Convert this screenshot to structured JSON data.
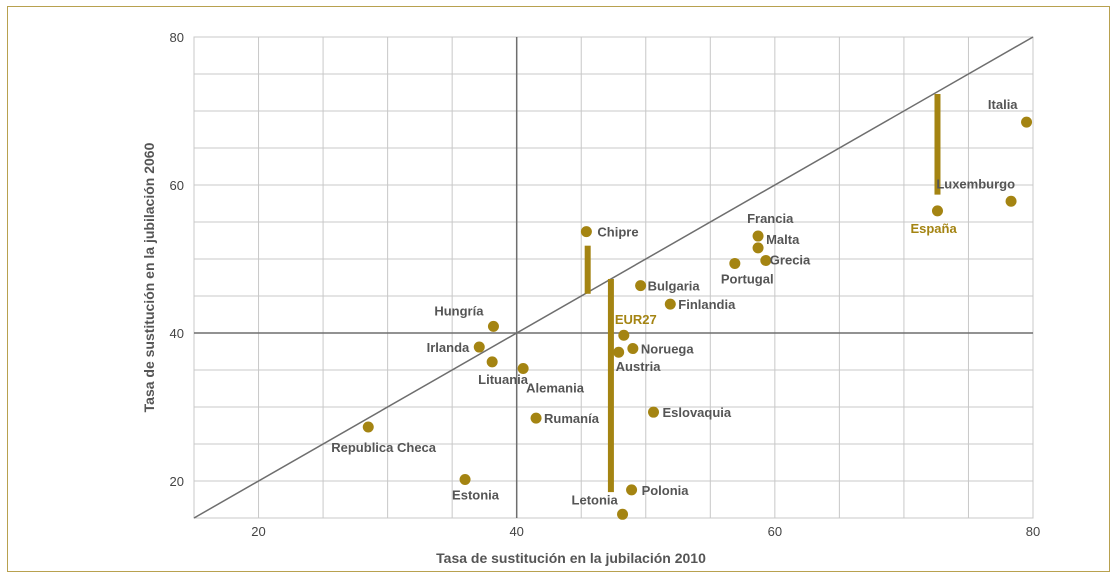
{
  "chart_data": {
    "type": "scatter",
    "xlabel": "Tasa de sustitución en la jubilación 2010",
    "ylabel": "Tasa de sustitución en la jubilación 2060",
    "xlim": [
      15,
      80
    ],
    "ylim": [
      15,
      80
    ],
    "xticks": [
      20,
      40,
      60,
      80
    ],
    "yticks": [
      20,
      40,
      60,
      80
    ],
    "reference_lines": {
      "diagonal": "y = x",
      "vertical_x": 40,
      "horizontal_y": 40
    },
    "grid": true,
    "colors": {
      "marker": "#a48412",
      "highlight_text": "#a48412",
      "label_text": "#555555",
      "grid": "#c8c8c8",
      "reference": "#6e6e6e"
    },
    "points": [
      {
        "name": "Italia",
        "x": 79.5,
        "y": 68.5
      },
      {
        "name": "Luxemburgo",
        "x": 78.3,
        "y": 57.8
      },
      {
        "name": "España",
        "x": 72.6,
        "y": 56.5,
        "highlight": true
      },
      {
        "name": "Francia",
        "x": 58.7,
        "y": 53.1
      },
      {
        "name": "Malta",
        "x": 58.7,
        "y": 51.5
      },
      {
        "name": "Grecia",
        "x": 59.3,
        "y": 49.8
      },
      {
        "name": "Portugal",
        "x": 56.9,
        "y": 49.4
      },
      {
        "name": "Chipre",
        "x": 45.4,
        "y": 53.7
      },
      {
        "name": "Bulgaria",
        "x": 49.6,
        "y": 46.4
      },
      {
        "name": "Finlandia",
        "x": 51.9,
        "y": 43.9
      },
      {
        "name": "EUR27",
        "x": 48.3,
        "y": 39.7,
        "highlight": true
      },
      {
        "name": "Noruega",
        "x": 49.0,
        "y": 37.9
      },
      {
        "name": "Austria",
        "x": 47.9,
        "y": 37.4
      },
      {
        "name": "Hungría",
        "x": 38.2,
        "y": 40.9
      },
      {
        "name": "Irlanda",
        "x": 37.1,
        "y": 38.1
      },
      {
        "name": "Lituania",
        "x": 38.1,
        "y": 36.1
      },
      {
        "name": "Alemania",
        "x": 40.5,
        "y": 35.2
      },
      {
        "name": "Rumanía",
        "x": 41.5,
        "y": 28.5
      },
      {
        "name": "Eslovaquia",
        "x": 50.6,
        "y": 29.3
      },
      {
        "name": "Republica Checa",
        "x": 28.5,
        "y": 27.3
      },
      {
        "name": "Estonia",
        "x": 36.0,
        "y": 20.2
      },
      {
        "name": "Polonia",
        "x": 48.9,
        "y": 18.8
      },
      {
        "name": "Letonia",
        "x": 48.2,
        "y": 15.5
      }
    ],
    "range_bars": [
      {
        "x": 45.5,
        "y_from": 45.3,
        "y_to": 51.8
      },
      {
        "x": 47.3,
        "y_from": 18.5,
        "y_to": 47.3
      },
      {
        "x": 72.6,
        "y_from": 58.7,
        "y_to": 72.3
      }
    ]
  }
}
